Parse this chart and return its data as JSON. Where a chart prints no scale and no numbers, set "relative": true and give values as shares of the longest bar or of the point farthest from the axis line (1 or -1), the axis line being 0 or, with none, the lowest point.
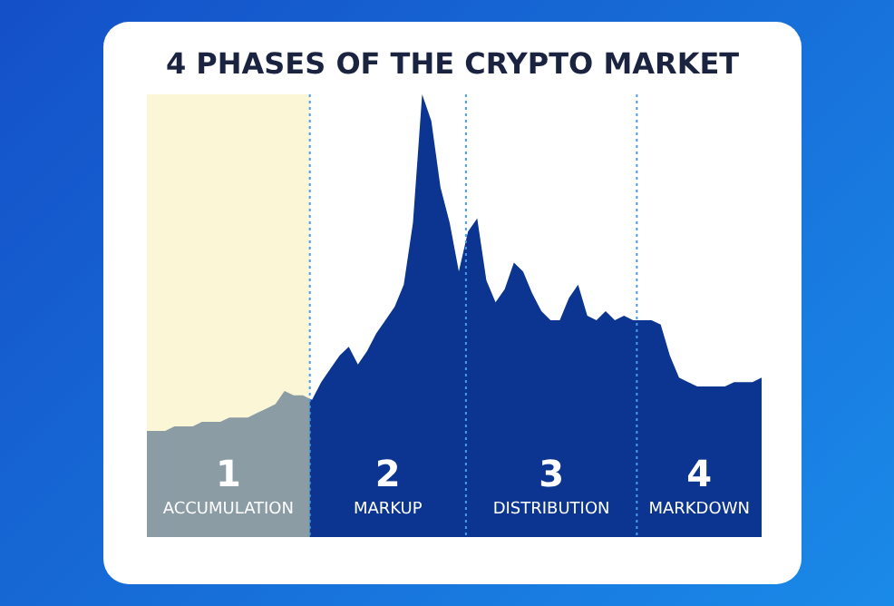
{
  "chart_data": {
    "type": "area",
    "title": "4 PHASES OF THE CRYPTO MARKET",
    "relative": true,
    "categories": [
      null,
      null,
      null,
      null,
      null,
      null,
      null,
      null,
      null,
      null,
      null,
      null,
      null,
      null,
      null,
      null,
      null,
      null,
      null,
      null,
      null,
      null,
      null,
      null,
      null,
      null,
      null,
      null,
      null,
      null,
      null,
      null,
      null,
      null,
      null,
      null,
      null,
      null,
      null,
      null,
      null,
      null,
      null,
      null,
      null,
      null,
      null,
      null,
      null,
      null,
      null,
      null,
      null,
      null,
      null,
      null,
      null,
      null,
      null,
      null,
      null,
      null,
      null,
      null,
      null,
      null,
      null,
      null
    ],
    "series": [
      {
        "color": "#0b3590",
        "values": [
          0.24,
          0.24,
          0.24,
          0.25,
          0.25,
          0.25,
          0.26,
          0.26,
          0.26,
          0.27,
          0.27,
          0.27,
          0.28,
          0.29,
          0.3,
          0.33,
          0.32,
          0.32,
          0.31,
          0.35,
          0.38,
          0.41,
          0.43,
          0.39,
          0.42,
          0.46,
          0.49,
          0.52,
          0.57,
          0.71,
          1,
          0.94,
          0.79,
          0.71,
          0.6,
          0.69,
          0.72,
          0.58,
          0.53,
          0.56,
          0.62,
          0.6,
          0.55,
          0.51,
          0.49,
          0.49,
          0.54,
          0.57,
          0.5,
          0.49,
          0.51,
          0.49,
          0.5,
          0.49,
          0.49,
          0.49,
          0.48,
          0.41,
          0.36,
          0.35,
          0.34,
          0.34,
          0.34,
          0.34,
          0.35,
          0.35,
          0.35,
          0.36
        ]
      }
    ],
    "annotations": [
      "1\nACCUMULATION",
      "2\nMARKUP",
      "3\nDISTRIBUTION",
      "4\nMARKDOWN"
    ]
  }
}
